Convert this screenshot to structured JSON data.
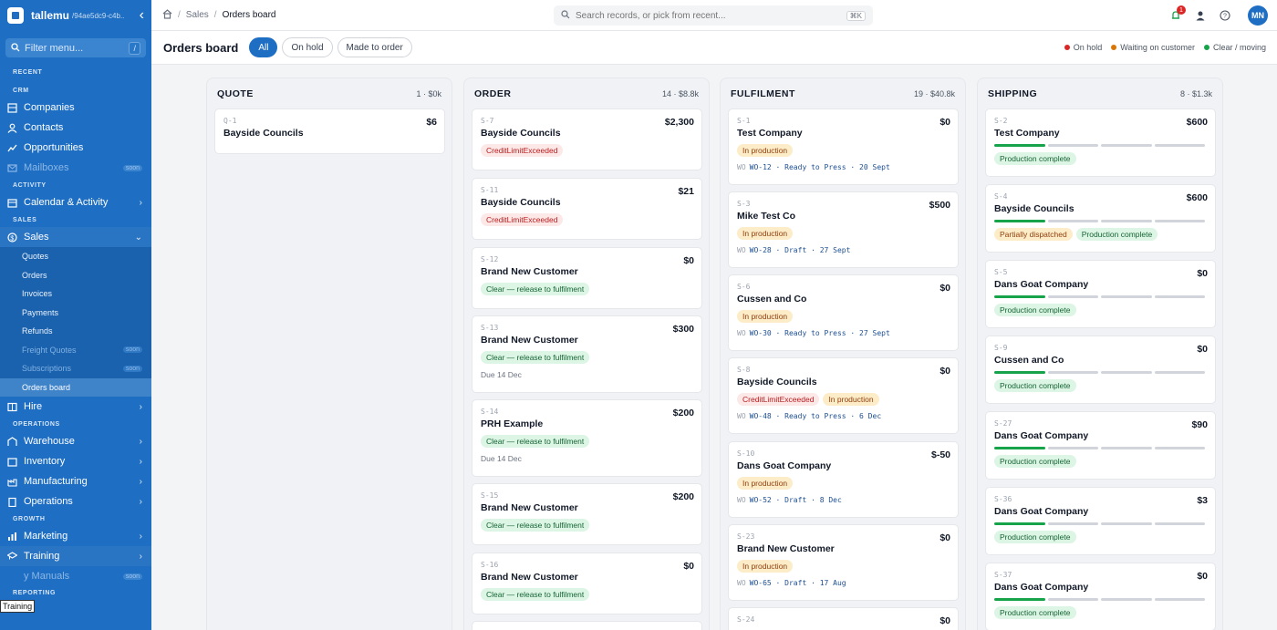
{
  "app": {
    "name": "tallemu",
    "tenant_id": "/94ae5dc9-c4b..."
  },
  "sidebar": {
    "filter_placeholder": "Filter menu...",
    "filter_key": "/",
    "recent": "RECENT",
    "crm": {
      "label": "CRM",
      "items": [
        {
          "label": "Companies"
        },
        {
          "label": "Contacts"
        },
        {
          "label": "Opportunities"
        },
        {
          "label": "Mailboxes",
          "badge": "soon"
        }
      ]
    },
    "activity": {
      "label": "ACTIVITY",
      "items": [
        {
          "label": "Calendar & Activity"
        }
      ]
    },
    "sales": {
      "label": "SALES",
      "title": "Sales",
      "items": [
        {
          "label": "Quotes"
        },
        {
          "label": "Orders"
        },
        {
          "label": "Invoices"
        },
        {
          "label": "Payments"
        },
        {
          "label": "Refunds"
        },
        {
          "label": "Freight Quotes",
          "badge": "soon"
        },
        {
          "label": "Subscriptions",
          "badge": "soon"
        },
        {
          "label": "Orders board"
        }
      ]
    },
    "hire": "Hire",
    "operations": {
      "label": "OPERATIONS",
      "items": [
        {
          "label": "Warehouse"
        },
        {
          "label": "Inventory"
        },
        {
          "label": "Manufacturing"
        },
        {
          "label": "Operations"
        }
      ]
    },
    "growth": {
      "label": "GROWTH",
      "items": [
        {
          "label": "Marketing"
        },
        {
          "label": "Training"
        },
        {
          "label": "y Manuals",
          "badge": "soon"
        }
      ]
    },
    "reporting": "REPORTING",
    "tooltip": "Training"
  },
  "topbar": {
    "breadcrumb": [
      "Sales",
      "Orders board"
    ],
    "search_placeholder": "Search records, or pick from recent...",
    "search_key": "⌘K",
    "notif_count": "1",
    "avatar": "MN"
  },
  "header": {
    "title": "Orders board",
    "filters": [
      "All",
      "On hold",
      "Made to order"
    ],
    "legend": [
      {
        "label": "On hold",
        "color": "#dc2626"
      },
      {
        "label": "Waiting on customer",
        "color": "#d97706"
      },
      {
        "label": "Clear / moving",
        "color": "#16a34a"
      }
    ]
  },
  "columns": [
    {
      "title": "QUOTE",
      "summary": "1 · $0k",
      "cards": [
        {
          "code": "Q-1",
          "amount": "$6",
          "customer": "Bayside Councils"
        }
      ]
    },
    {
      "title": "ORDER",
      "summary": "14 · $8.8k",
      "cards": [
        {
          "code": "S-7",
          "amount": "$2,300",
          "customer": "Bayside Councils",
          "tags": [
            "CreditLimitExceeded"
          ]
        },
        {
          "code": "S-11",
          "amount": "$21",
          "customer": "Bayside Councils",
          "tags": [
            "CreditLimitExceeded"
          ]
        },
        {
          "code": "S-12",
          "amount": "$0",
          "customer": "Brand New Customer",
          "tags": [
            "Clear — release to fulfilment"
          ]
        },
        {
          "code": "S-13",
          "amount": "$300",
          "customer": "Brand New Customer",
          "tags": [
            "Clear — release to fulfilment"
          ],
          "due": "Due 14 Dec"
        },
        {
          "code": "S-14",
          "amount": "$200",
          "customer": "PRH Example",
          "tags": [
            "Clear — release to fulfilment"
          ],
          "due": "Due 14 Dec"
        },
        {
          "code": "S-15",
          "amount": "$200",
          "customer": "Brand New Customer",
          "tags": [
            "Clear — release to fulfilment"
          ]
        },
        {
          "code": "S-16",
          "amount": "$0",
          "customer": "Brand New Customer",
          "tags": [
            "Clear — release to fulfilment"
          ]
        }
      ]
    },
    {
      "title": "FULFILMENT",
      "summary": "19 · $40.8k",
      "cards": [
        {
          "code": "S-1",
          "amount": "$0",
          "customer": "Test Company",
          "tags": [
            "In production"
          ],
          "wo_label": "WO",
          "wo": "WO-12 · Ready to Press · 20 Sept"
        },
        {
          "code": "S-3",
          "amount": "$500",
          "customer": "Mike Test Co",
          "tags": [
            "In production"
          ],
          "wo_label": "WO",
          "wo": "WO-28 · Draft · 27 Sept"
        },
        {
          "code": "S-6",
          "amount": "$0",
          "customer": "Cussen and Co",
          "tags": [
            "In production"
          ],
          "wo_label": "WO",
          "wo": "WO-30 · Ready to Press · 27 Sept"
        },
        {
          "code": "S-8",
          "amount": "$0",
          "customer": "Bayside Councils",
          "tags": [
            "CreditLimitExceeded",
            "In production"
          ],
          "wo_label": "WO",
          "wo": "WO-48 · Ready to Press · 6 Dec"
        },
        {
          "code": "S-10",
          "amount": "$-50",
          "customer": "Dans Goat Company",
          "tags": [
            "In production"
          ],
          "wo_label": "WO",
          "wo": "WO-52 · Draft · 8 Dec"
        },
        {
          "code": "S-23",
          "amount": "$0",
          "customer": "Brand New Customer",
          "tags": [
            "In production"
          ],
          "wo_label": "WO",
          "wo": "WO-65 · Draft · 17 Aug"
        },
        {
          "code": "S-24",
          "amount": "$0",
          "customer": ""
        }
      ]
    },
    {
      "title": "SHIPPING",
      "summary": "8 · $1.3k",
      "cards": [
        {
          "code": "S-2",
          "amount": "$600",
          "customer": "Test Company",
          "progress": 1,
          "tags": [
            "Production complete"
          ]
        },
        {
          "code": "S-4",
          "amount": "$600",
          "customer": "Bayside Councils",
          "progress": 1,
          "tags": [
            "Partially dispatched",
            "Production complete"
          ]
        },
        {
          "code": "S-5",
          "amount": "$0",
          "customer": "Dans Goat Company",
          "progress": 1,
          "tags": [
            "Production complete"
          ]
        },
        {
          "code": "S-9",
          "amount": "$0",
          "customer": "Cussen and Co",
          "progress": 1,
          "tags": [
            "Production complete"
          ]
        },
        {
          "code": "S-27",
          "amount": "$90",
          "customer": "Dans Goat Company",
          "progress": 1,
          "tags": [
            "Production complete"
          ]
        },
        {
          "code": "S-36",
          "amount": "$3",
          "customer": "Dans Goat Company",
          "progress": 1,
          "tags": [
            "Production complete"
          ]
        },
        {
          "code": "S-37",
          "amount": "$0",
          "customer": "Dans Goat Company",
          "progress": 1,
          "tags": [
            "Production complete"
          ]
        }
      ]
    }
  ]
}
